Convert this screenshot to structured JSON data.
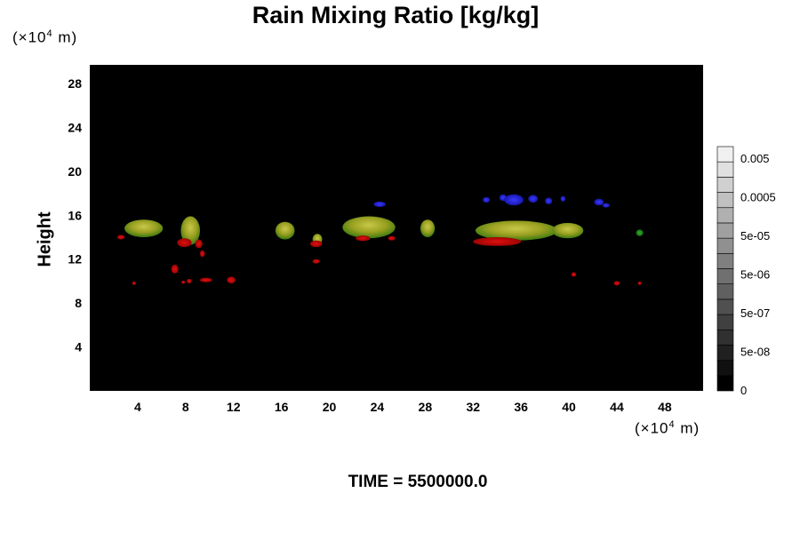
{
  "chart_data": {
    "type": "heatmap",
    "title": "Rain Mixing Ratio [kg/kg]",
    "ylabel": "Height",
    "x_unit": "(×10⁴ m)",
    "y_unit": "(×10⁴ m)",
    "xlim": [
      0,
      51.2
    ],
    "ylim": [
      0,
      29.7
    ],
    "x_ticks": [
      "4",
      "8",
      "12",
      "16",
      "20",
      "24",
      "28",
      "32",
      "36",
      "40",
      "44",
      "48"
    ],
    "x_tick_values": [
      4,
      8,
      12,
      16,
      20,
      24,
      28,
      32,
      36,
      40,
      44,
      48
    ],
    "y_ticks": [
      "4",
      "8",
      "12",
      "16",
      "20",
      "24",
      "28"
    ],
    "y_tick_values": [
      4,
      8,
      12,
      16,
      20,
      24,
      28
    ],
    "background_color": "#000000",
    "colorbar": {
      "labels": [
        "0.005",
        "0.0005",
        "5e-05",
        "5e-06",
        "5e-07",
        "5e-08",
        "0"
      ],
      "steps": 16,
      "min_color": "#000000",
      "max_color": "#f0f0f0"
    },
    "features": [
      {
        "kind": "cloud",
        "x": 4.5,
        "y": 14.8,
        "rx": 1.6,
        "ry": 0.8
      },
      {
        "kind": "cloud",
        "x": 8.4,
        "y": 14.6,
        "rx": 0.8,
        "ry": 1.3
      },
      {
        "kind": "cloud",
        "x": 16.3,
        "y": 14.6,
        "rx": 0.8,
        "ry": 0.8
      },
      {
        "kind": "cloud",
        "x": 19.0,
        "y": 13.8,
        "rx": 0.4,
        "ry": 0.5
      },
      {
        "kind": "cloud",
        "x": 23.3,
        "y": 14.9,
        "rx": 2.2,
        "ry": 1.0
      },
      {
        "kind": "cloud",
        "x": 28.2,
        "y": 14.8,
        "rx": 0.6,
        "ry": 0.8
      },
      {
        "kind": "cloud",
        "x": 35.6,
        "y": 14.6,
        "rx": 3.4,
        "ry": 0.9
      },
      {
        "kind": "cloud",
        "x": 39.9,
        "y": 14.6,
        "rx": 1.3,
        "ry": 0.7
      },
      {
        "kind": "rain",
        "x": 7.9,
        "y": 13.5,
        "rx": 0.6,
        "ry": 0.4
      },
      {
        "kind": "rain",
        "x": 9.1,
        "y": 13.4,
        "rx": 0.3,
        "ry": 0.4
      },
      {
        "kind": "rain",
        "x": 9.4,
        "y": 12.5,
        "rx": 0.2,
        "ry": 0.3
      },
      {
        "kind": "rain",
        "x": 7.1,
        "y": 11.1,
        "rx": 0.3,
        "ry": 0.4
      },
      {
        "kind": "rain",
        "x": 7.8,
        "y": 9.9,
        "rx": 0.15,
        "ry": 0.15
      },
      {
        "kind": "rain",
        "x": 8.3,
        "y": 10.0,
        "rx": 0.2,
        "ry": 0.2
      },
      {
        "kind": "rain",
        "x": 9.7,
        "y": 10.1,
        "rx": 0.5,
        "ry": 0.2
      },
      {
        "kind": "rain",
        "x": 11.8,
        "y": 10.1,
        "rx": 0.35,
        "ry": 0.3
      },
      {
        "kind": "rain",
        "x": 3.7,
        "y": 9.8,
        "rx": 0.15,
        "ry": 0.15
      },
      {
        "kind": "rain",
        "x": 2.6,
        "y": 14.0,
        "rx": 0.3,
        "ry": 0.2
      },
      {
        "kind": "rain",
        "x": 18.9,
        "y": 13.4,
        "rx": 0.5,
        "ry": 0.3
      },
      {
        "kind": "rain",
        "x": 18.9,
        "y": 11.8,
        "rx": 0.3,
        "ry": 0.2
      },
      {
        "kind": "rain",
        "x": 22.8,
        "y": 13.9,
        "rx": 0.6,
        "ry": 0.25
      },
      {
        "kind": "rain",
        "x": 25.2,
        "y": 13.9,
        "rx": 0.3,
        "ry": 0.2
      },
      {
        "kind": "rain",
        "x": 34.0,
        "y": 13.6,
        "rx": 2.0,
        "ry": 0.4
      },
      {
        "kind": "rain",
        "x": 40.4,
        "y": 10.6,
        "rx": 0.2,
        "ry": 0.2
      },
      {
        "kind": "rain",
        "x": 44.0,
        "y": 9.8,
        "rx": 0.25,
        "ry": 0.2
      },
      {
        "kind": "rain",
        "x": 45.9,
        "y": 9.8,
        "rx": 0.15,
        "ry": 0.15
      },
      {
        "kind": "ice",
        "x": 24.2,
        "y": 17.0,
        "rx": 0.5,
        "ry": 0.25
      },
      {
        "kind": "ice",
        "x": 33.1,
        "y": 17.4,
        "rx": 0.3,
        "ry": 0.25
      },
      {
        "kind": "ice",
        "x": 34.5,
        "y": 17.6,
        "rx": 0.3,
        "ry": 0.3
      },
      {
        "kind": "ice",
        "x": 35.4,
        "y": 17.4,
        "rx": 0.8,
        "ry": 0.5
      },
      {
        "kind": "ice",
        "x": 37.0,
        "y": 17.5,
        "rx": 0.4,
        "ry": 0.35
      },
      {
        "kind": "ice",
        "x": 38.3,
        "y": 17.3,
        "rx": 0.3,
        "ry": 0.3
      },
      {
        "kind": "ice",
        "x": 39.5,
        "y": 17.5,
        "rx": 0.2,
        "ry": 0.25
      },
      {
        "kind": "ice",
        "x": 42.5,
        "y": 17.2,
        "rx": 0.4,
        "ry": 0.3
      },
      {
        "kind": "ice",
        "x": 43.1,
        "y": 16.9,
        "rx": 0.3,
        "ry": 0.2
      },
      {
        "kind": "green",
        "x": 45.9,
        "y": 14.4,
        "rx": 0.3,
        "ry": 0.3
      }
    ]
  },
  "footer": {
    "time_label": "TIME = 5500000.0"
  }
}
